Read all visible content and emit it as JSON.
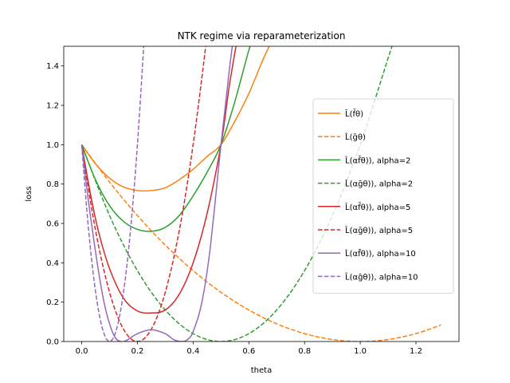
{
  "chart_data": {
    "type": "line",
    "title": "NTK regime via reparameterization",
    "xlabel": "theta",
    "ylabel": "loss",
    "xlim": [
      -0.0645,
      1.3545
    ],
    "ylim": [
      0,
      1.5
    ],
    "xticks": [
      0.0,
      0.2,
      0.4,
      0.6,
      0.8,
      1.0,
      1.2
    ],
    "xtick_labels": [
      "0.0",
      "0.2",
      "0.4",
      "0.6",
      "0.8",
      "1.0",
      "1.2"
    ],
    "yticks": [
      0.0,
      0.2,
      0.4,
      0.6,
      0.8,
      1.0,
      1.2,
      1.4
    ],
    "ytick_labels": [
      "0.0",
      "0.2",
      "0.4",
      "0.6",
      "0.8",
      "1.0",
      "1.2",
      "1.4"
    ],
    "grid": false,
    "legend_position": "center-right",
    "series": [
      {
        "name": "L̂(f̄θ)",
        "color": "#ff7f0e",
        "dash": "solid",
        "x": [
          0.0,
          0.05,
          0.1,
          0.15,
          0.2,
          0.25,
          0.3,
          0.35,
          0.4,
          0.45,
          0.5,
          0.55,
          0.6,
          0.65,
          0.68
        ],
        "y": [
          1.0,
          0.902,
          0.83,
          0.785,
          0.767,
          0.767,
          0.781,
          0.822,
          0.875,
          0.94,
          1.0,
          1.12,
          1.26,
          1.43,
          1.52
        ]
      },
      {
        "name": "L̂(ḡθ)",
        "color": "#ff7f0e",
        "dash": "dashed",
        "x": [
          0.0,
          0.1,
          0.2,
          0.3,
          0.4,
          0.5,
          0.6,
          0.7,
          0.8,
          0.9,
          1.0,
          1.1,
          1.2,
          1.29
        ],
        "y": [
          1.0,
          0.81,
          0.64,
          0.49,
          0.36,
          0.25,
          0.16,
          0.09,
          0.04,
          0.01,
          0.0,
          0.01,
          0.04,
          0.084
        ]
      },
      {
        "name": "L̂(αf̄θ)), alpha=2",
        "color": "#2ca02c",
        "dash": "solid",
        "x": [
          0.0,
          0.05,
          0.1,
          0.15,
          0.2,
          0.25,
          0.3,
          0.35,
          0.4,
          0.45,
          0.5,
          0.55,
          0.6,
          0.62
        ],
        "y": [
          1.0,
          0.82,
          0.69,
          0.61,
          0.57,
          0.56,
          0.58,
          0.64,
          0.74,
          0.86,
          1.0,
          1.22,
          1.48,
          1.55
        ]
      },
      {
        "name": "L̂(αḡθ)), alpha=2",
        "color": "#2ca02c",
        "dash": "dashed",
        "x": [
          0.0,
          0.1,
          0.2,
          0.3,
          0.4,
          0.5,
          0.6,
          0.7,
          0.8,
          0.9,
          1.0,
          1.1,
          1.12
        ],
        "y": [
          1.0,
          0.64,
          0.36,
          0.16,
          0.04,
          0.0,
          0.04,
          0.16,
          0.36,
          0.64,
          1.0,
          1.44,
          1.52
        ]
      },
      {
        "name": "L̂(αf̄θ)), alpha=5",
        "color": "#d62728",
        "dash": "solid",
        "x": [
          0.0,
          0.03,
          0.06,
          0.1,
          0.15,
          0.2,
          0.25,
          0.3,
          0.35,
          0.4,
          0.45,
          0.5,
          0.53,
          0.56
        ],
        "y": [
          1.0,
          0.76,
          0.56,
          0.37,
          0.22,
          0.155,
          0.145,
          0.16,
          0.24,
          0.4,
          0.65,
          1.0,
          1.3,
          1.55
        ]
      },
      {
        "name": "L̂(αḡθ)), alpha=5",
        "color": "#d62728",
        "dash": "dashed",
        "x": [
          0.0,
          0.04,
          0.08,
          0.12,
          0.16,
          0.2,
          0.24,
          0.28,
          0.32,
          0.36,
          0.4,
          0.44,
          0.46
        ],
        "y": [
          1.0,
          0.64,
          0.36,
          0.16,
          0.04,
          0.0,
          0.04,
          0.16,
          0.36,
          0.64,
          1.0,
          1.44,
          1.69
        ]
      },
      {
        "name": "L̂(αf̄θ)), alpha=10",
        "color": "#9467bd",
        "dash": "solid",
        "x": [
          0.0,
          0.02,
          0.04,
          0.06,
          0.08,
          0.1,
          0.12,
          0.14,
          0.16,
          0.2,
          0.25,
          0.3,
          0.33,
          0.36,
          0.38,
          0.4,
          0.43,
          0.46,
          0.5,
          0.53,
          0.55
        ],
        "y": [
          1.0,
          0.76,
          0.55,
          0.36,
          0.2,
          0.09,
          0.02,
          0.0,
          0.005,
          0.04,
          0.06,
          0.04,
          0.01,
          0.0,
          0.01,
          0.05,
          0.19,
          0.46,
          1.0,
          1.38,
          1.6
        ]
      },
      {
        "name": "L̂(αḡθ)), alpha=10",
        "color": "#9467bd",
        "dash": "dashed",
        "x": [
          0.0,
          0.02,
          0.04,
          0.06,
          0.08,
          0.1,
          0.12,
          0.14,
          0.16,
          0.18,
          0.2,
          0.22,
          0.23
        ],
        "y": [
          1.0,
          0.64,
          0.36,
          0.16,
          0.04,
          0.0,
          0.04,
          0.16,
          0.36,
          0.64,
          1.0,
          1.44,
          1.69
        ]
      }
    ]
  }
}
